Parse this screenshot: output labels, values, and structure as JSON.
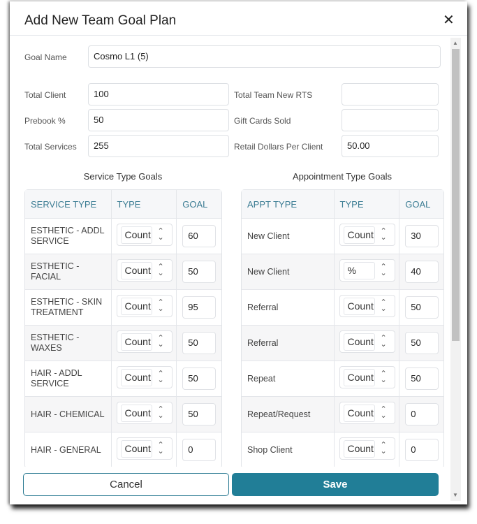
{
  "modal": {
    "title": "Add New Team Goal Plan",
    "close_icon": "close-icon"
  },
  "form": {
    "goal_name": {
      "label": "Goal Name",
      "value": "Cosmo L1 (5)"
    },
    "total_client": {
      "label": "Total Client",
      "value": "100"
    },
    "prebook": {
      "label": "Prebook %",
      "value": "50"
    },
    "total_services": {
      "label": "Total Services",
      "value": "255"
    },
    "total_team_new_rts": {
      "label": "Total Team New RTS",
      "value": ""
    },
    "gift_cards_sold": {
      "label": "Gift Cards Sold",
      "value": ""
    },
    "retail_dollars": {
      "label": "Retail Dollars Per Client",
      "value": "50.00"
    }
  },
  "service_goals": {
    "title": "Service Type Goals",
    "headers": [
      "SERVICE TYPE",
      "TYPE",
      "GOAL"
    ],
    "rows": [
      {
        "name": "ESTHETIC - ADDL SERVICE",
        "type": "Count",
        "goal": "60"
      },
      {
        "name": "ESTHETIC - FACIAL",
        "type": "Count",
        "goal": "50"
      },
      {
        "name": "ESTHETIC - SKIN TREATMENT",
        "type": "Count",
        "goal": "95"
      },
      {
        "name": "ESTHETIC - WAXES",
        "type": "Count",
        "goal": "50"
      },
      {
        "name": "HAIR - ADDL SERVICE",
        "type": "Count",
        "goal": "50"
      },
      {
        "name": "HAIR - CHEMICAL",
        "type": "Count",
        "goal": "50"
      },
      {
        "name": "HAIR - GENERAL",
        "type": "Count",
        "goal": "0"
      }
    ]
  },
  "appt_goals": {
    "title": "Appointment Type Goals",
    "headers": [
      "APPT TYPE",
      "TYPE",
      "GOAL"
    ],
    "rows": [
      {
        "name": "New Client",
        "type": "Count",
        "goal": "30"
      },
      {
        "name": "New Client",
        "type": "%",
        "goal": "40"
      },
      {
        "name": "Referral",
        "type": "Count",
        "goal": "50"
      },
      {
        "name": "Referral",
        "type": "Count",
        "goal": "50"
      },
      {
        "name": "Repeat",
        "type": "Count",
        "goal": "50"
      },
      {
        "name": "Repeat/Request",
        "type": "Count",
        "goal": "0"
      },
      {
        "name": "Shop Client",
        "type": "Count",
        "goal": "0"
      }
    ]
  },
  "footer": {
    "cancel": "Cancel",
    "save": "Save"
  }
}
